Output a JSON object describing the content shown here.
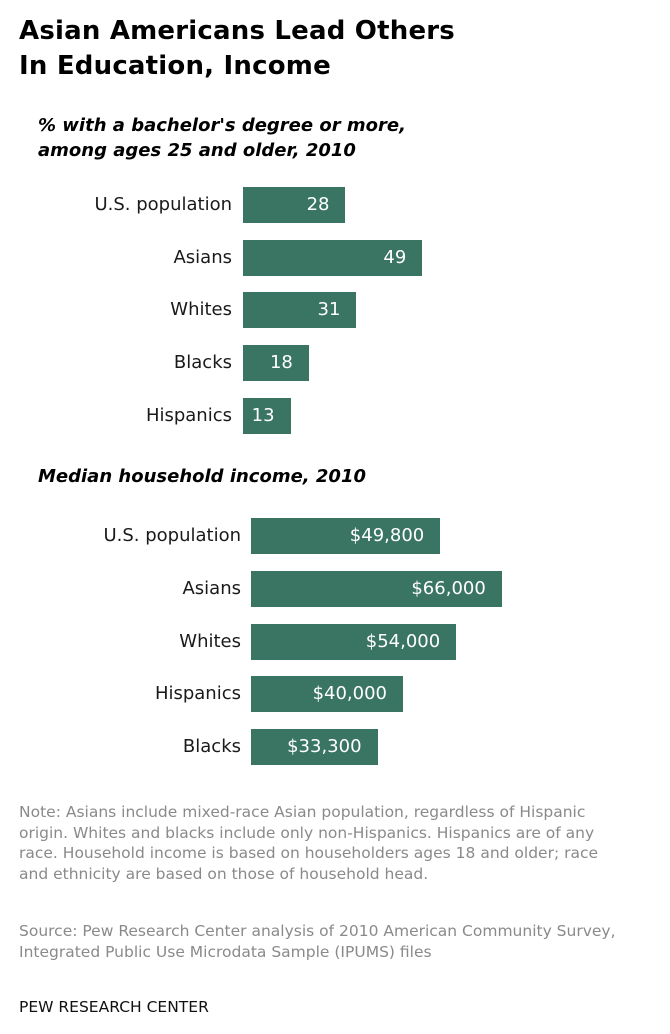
{
  "title_lines": [
    "Asian Americans Lead Others",
    "In Education, Income"
  ],
  "chart_data": [
    {
      "type": "bar",
      "orientation": "horizontal",
      "title_lines": [
        "% with a bachelor's degree or more,",
        "among ages 25 and older, 2010"
      ],
      "categories": [
        "U.S. population",
        "Asians",
        "Whites",
        "Blacks",
        "Hispanics"
      ],
      "values": [
        28,
        49,
        31,
        18,
        13
      ],
      "labels": [
        "28",
        "49",
        "31",
        "18",
        "13"
      ],
      "unit": "%",
      "color": "#3a7563",
      "xlabel": "",
      "ylabel": "",
      "grid": false
    },
    {
      "type": "bar",
      "orientation": "horizontal",
      "title_lines": [
        "Median household income, 2010"
      ],
      "categories": [
        "U.S. population",
        "Asians",
        "Whites",
        "Hispanics",
        "Blacks"
      ],
      "values": [
        49800,
        66000,
        54000,
        40000,
        33300
      ],
      "labels": [
        "$49,800",
        "$66,000",
        "$54,000",
        "$40,000",
        "$33,300"
      ],
      "unit": "USD",
      "color": "#3a7563",
      "xlabel": "",
      "ylabel": "",
      "grid": false
    }
  ],
  "note": "Note: Asians include mixed-race Asian population, regardless of Hispanic origin. Whites and blacks include only non-Hispanics. Hispanics are of any race. Household income is based on householders ages 18 and older; race and ethnicity are based on those of household head.",
  "source": "Source: Pew Research Center analysis of 2010 American Community Survey, Integrated Public Use Microdata Sample (IPUMS) files",
  "brand": "PEW RESEARCH CENTER"
}
